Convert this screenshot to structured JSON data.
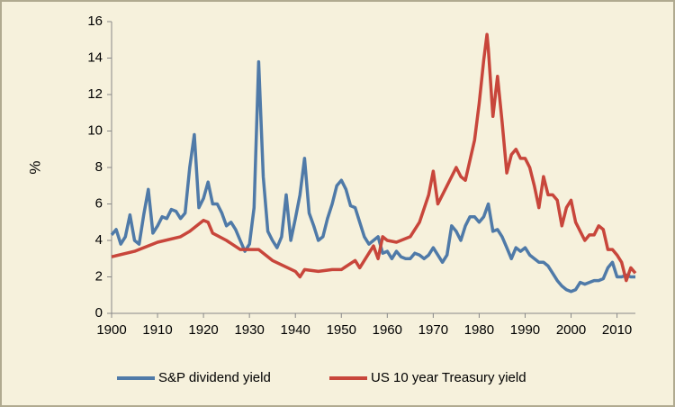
{
  "chart_data": {
    "type": "line",
    "y_label": "%",
    "xlim": [
      1900,
      2014
    ],
    "xticks": [
      1900,
      1910,
      1920,
      1930,
      1940,
      1950,
      1960,
      1970,
      1980,
      1990,
      2000,
      2010
    ],
    "ylim": [
      0,
      16
    ],
    "yticks": [
      0,
      2,
      4,
      6,
      8,
      10,
      12,
      14,
      16
    ],
    "legend": "bottom",
    "series": [
      {
        "name": "S&P dividend yield",
        "color": "#4f7aa8",
        "x": [
          1900,
          1901,
          1902,
          1903,
          1904,
          1905,
          1906,
          1907,
          1908,
          1909,
          1910,
          1911,
          1912,
          1913,
          1914,
          1915,
          1916,
          1917,
          1918,
          1919,
          1920,
          1921,
          1922,
          1923,
          1924,
          1925,
          1926,
          1927,
          1928,
          1929,
          1930,
          1931,
          1932,
          1933,
          1934,
          1935,
          1936,
          1937,
          1938,
          1939,
          1940,
          1941,
          1942,
          1943,
          1944,
          1945,
          1946,
          1947,
          1948,
          1949,
          1950,
          1951,
          1952,
          1953,
          1954,
          1955,
          1956,
          1957,
          1958,
          1959,
          1960,
          1961,
          1962,
          1963,
          1964,
          1965,
          1966,
          1967,
          1968,
          1969,
          1970,
          1971,
          1972,
          1973,
          1974,
          1975,
          1976,
          1977,
          1978,
          1979,
          1980,
          1981,
          1982,
          1983,
          1984,
          1985,
          1986,
          1987,
          1988,
          1989,
          1990,
          1991,
          1992,
          1993,
          1994,
          1995,
          1996,
          1997,
          1998,
          1999,
          2000,
          2001,
          2002,
          2003,
          2004,
          2005,
          2006,
          2007,
          2008,
          2009,
          2010,
          2011,
          2012,
          2013,
          2014
        ],
        "values": [
          4.3,
          4.6,
          3.8,
          4.2,
          5.4,
          4.0,
          3.8,
          5.4,
          6.8,
          4.4,
          4.8,
          5.3,
          5.2,
          5.7,
          5.6,
          5.2,
          5.5,
          8.0,
          9.8,
          5.8,
          6.3,
          7.2,
          6.0,
          6.0,
          5.5,
          4.8,
          5.0,
          4.6,
          4.0,
          3.4,
          3.8,
          5.8,
          13.8,
          7.5,
          4.5,
          4.0,
          3.6,
          4.2,
          6.5,
          4.0,
          5.2,
          6.5,
          8.5,
          5.5,
          4.8,
          4.0,
          4.2,
          5.2,
          6.0,
          7.0,
          7.3,
          6.8,
          5.9,
          5.8,
          5.0,
          4.2,
          3.8,
          4.0,
          4.2,
          3.3,
          3.4,
          3.0,
          3.4,
          3.1,
          3.0,
          3.0,
          3.3,
          3.2,
          3.0,
          3.2,
          3.6,
          3.2,
          2.8,
          3.2,
          4.8,
          4.5,
          4.0,
          4.8,
          5.3,
          5.3,
          5.0,
          5.3,
          6.0,
          4.5,
          4.6,
          4.2,
          3.6,
          3.0,
          3.6,
          3.4,
          3.6,
          3.2,
          3.0,
          2.8,
          2.8,
          2.6,
          2.2,
          1.8,
          1.5,
          1.3,
          1.2,
          1.3,
          1.7,
          1.6,
          1.7,
          1.8,
          1.8,
          1.9,
          2.5,
          2.8,
          2.0,
          2.0,
          2.1,
          2.0,
          2.0
        ]
      },
      {
        "name": "US 10 year Treasury yield",
        "color": "#c8463b",
        "x": [
          1900,
          1905,
          1910,
          1915,
          1917,
          1920,
          1921,
          1922,
          1925,
          1928,
          1930,
          1932,
          1935,
          1940,
          1941,
          1942,
          1945,
          1948,
          1950,
          1953,
          1954,
          1955,
          1957,
          1958,
          1959,
          1960,
          1962,
          1965,
          1967,
          1969,
          1970,
          1971,
          1973,
          1975,
          1976,
          1977,
          1978,
          1979,
          1980,
          1981,
          1981.7,
          1982,
          1983,
          1984,
          1985,
          1986,
          1987,
          1988,
          1989,
          1990,
          1991,
          1992,
          1993,
          1994,
          1995,
          1996,
          1997,
          1998,
          1999,
          2000,
          2001,
          2002,
          2003,
          2004,
          2005,
          2006,
          2007,
          2008,
          2009,
          2010,
          2011,
          2012,
          2013,
          2014
        ],
        "values": [
          3.1,
          3.4,
          3.9,
          4.2,
          4.5,
          5.1,
          5.0,
          4.4,
          4.0,
          3.5,
          3.5,
          3.5,
          2.9,
          2.3,
          2.0,
          2.4,
          2.3,
          2.4,
          2.4,
          2.9,
          2.5,
          2.9,
          3.7,
          3.0,
          4.2,
          4.0,
          3.9,
          4.2,
          5.0,
          6.5,
          7.8,
          6.0,
          7.0,
          8.0,
          7.5,
          7.3,
          8.4,
          9.5,
          11.5,
          13.9,
          15.3,
          14.5,
          10.8,
          13.0,
          10.5,
          7.7,
          8.7,
          9.0,
          8.5,
          8.5,
          8.0,
          7.0,
          5.8,
          7.5,
          6.5,
          6.5,
          6.2,
          4.8,
          5.8,
          6.2,
          5.0,
          4.5,
          4.0,
          4.3,
          4.3,
          4.8,
          4.6,
          3.5,
          3.5,
          3.2,
          2.8,
          1.8,
          2.5,
          2.2
        ]
      }
    ]
  }
}
